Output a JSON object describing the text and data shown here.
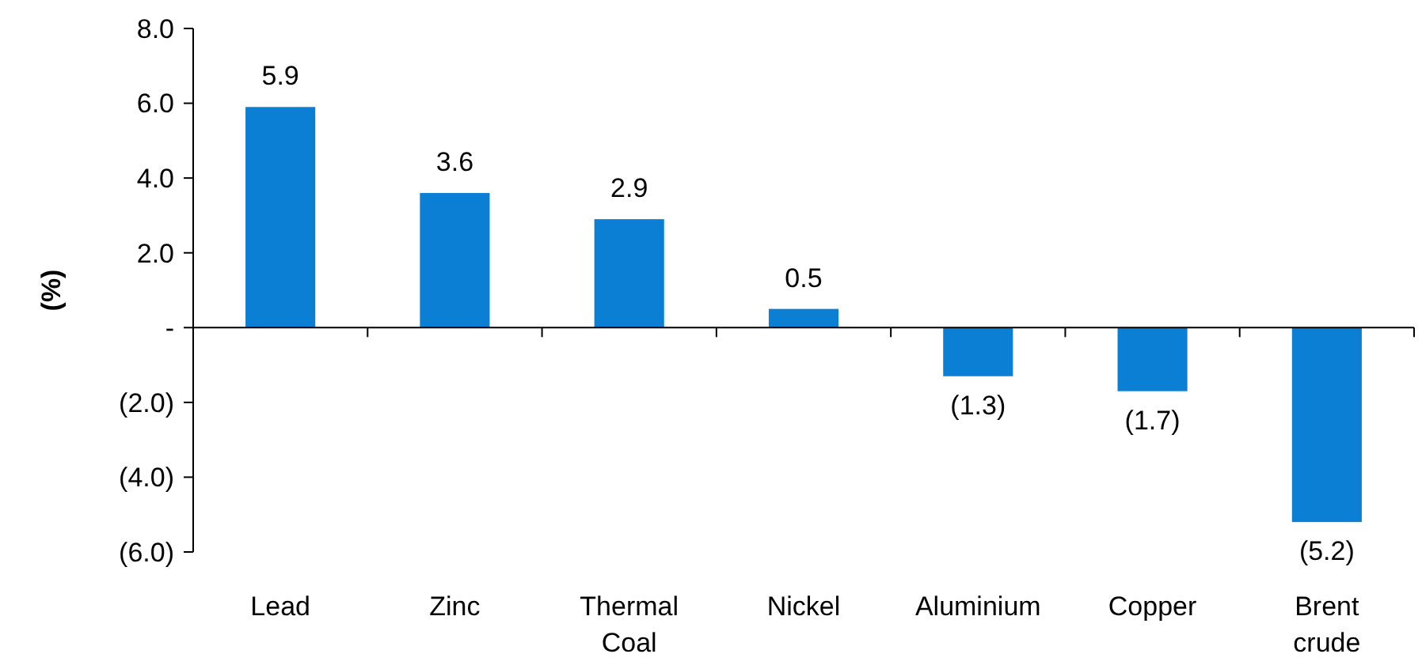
{
  "chart_data": {
    "type": "bar",
    "ylabel": "(%)",
    "categories": [
      "Lead",
      "Zinc",
      "Thermal Coal",
      "Nickel",
      "Aluminium",
      "Copper",
      "Brent crude"
    ],
    "values": [
      5.9,
      3.6,
      2.9,
      0.5,
      -1.3,
      -1.7,
      -5.2
    ],
    "value_labels": [
      "5.9",
      "3.6",
      "2.9",
      "0.5",
      "(1.3)",
      "(1.7)",
      "(5.2)"
    ],
    "color": "#0a7fd4",
    "ylim": [
      -6,
      8
    ],
    "yticks": [
      {
        "value": -6,
        "label": "(6.0)"
      },
      {
        "value": -4,
        "label": "(4.0)"
      },
      {
        "value": -2,
        "label": "(2.0)"
      },
      {
        "value": 0,
        "label": "-"
      },
      {
        "value": 2,
        "label": "2.0"
      },
      {
        "value": 4,
        "label": "4.0"
      },
      {
        "value": 6,
        "label": "6.0"
      },
      {
        "value": 8,
        "label": "8.0"
      }
    ]
  }
}
